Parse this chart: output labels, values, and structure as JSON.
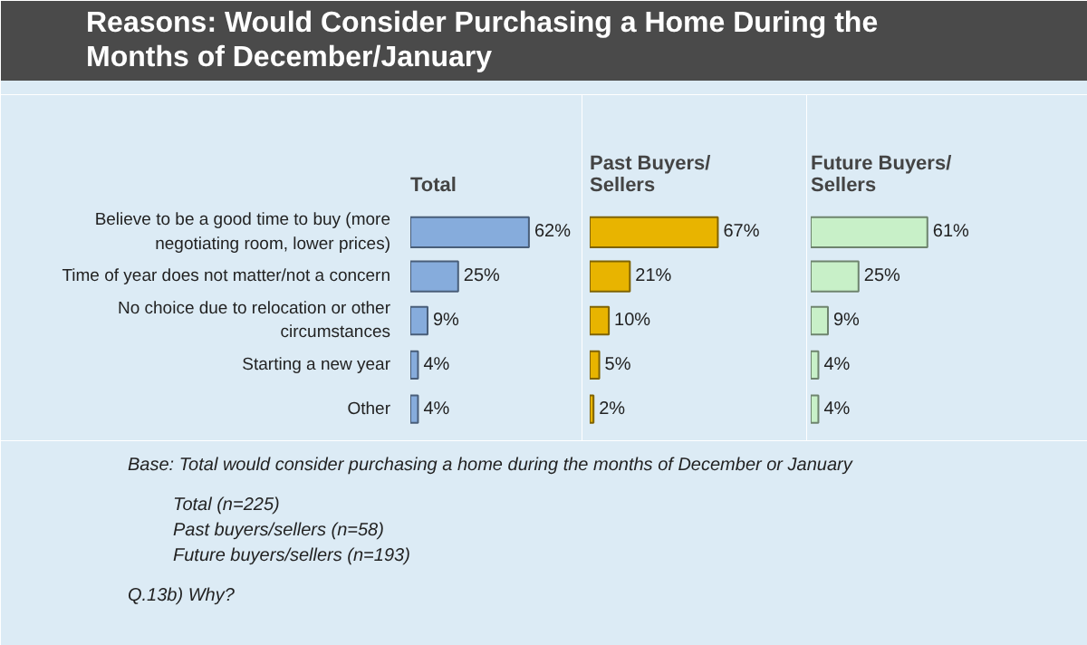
{
  "chart_data": [
    {
      "type": "other",
      "title": "Reasons: Would Consider Purchasing a Home During the Months of December/January",
      "annotations": [
        "Base: Total would consider purchasing a home during the months of December or January",
        "Total (n=225)",
        "Past buyers/sellers (n=58)",
        "Future buyers/sellers (n=193)",
        "Q.13b) Why?"
      ]
    },
    {
      "type": "bar",
      "orientation": "horizontal",
      "title": "Total",
      "categories": [
        "Believe to be a good time to buy (more negotiating room, lower prices)",
        "Time of year does not matter/not a concern",
        "No choice due to relocation or other circumstances",
        "Starting a new year",
        "Other"
      ],
      "values": [
        62,
        25,
        9,
        4,
        4
      ],
      "value_labels": [
        "62%",
        "25%",
        "9%",
        "4%",
        "4%"
      ],
      "color": "#86acdc",
      "xlim": [
        0,
        90
      ],
      "tick_labels": "y"
    },
    {
      "type": "bar",
      "orientation": "horizontal",
      "title": "Past Buyers/ Sellers",
      "categories": [
        "Believe to be a good time to buy (more negotiating room, lower prices)",
        "Time of year does not matter/not a concern",
        "No choice due to relocation or other circumstances",
        "Starting a new year",
        "Other"
      ],
      "values": [
        67,
        21,
        10,
        5,
        2
      ],
      "value_labels": [
        "67%",
        "21%",
        "10%",
        "5%",
        "2%"
      ],
      "color": "#e8b400",
      "xlim": [
        0,
        90
      ],
      "tick_labels": false
    },
    {
      "type": "bar",
      "orientation": "horizontal",
      "title": "Future Buyers/ Sellers",
      "categories": [
        "Believe to be a good time to buy (more negotiating room, lower prices)",
        "Time of year does not matter/not a concern",
        "No choice due to relocation or other circumstances",
        "Starting a new year",
        "Other"
      ],
      "values": [
        61,
        25,
        9,
        4,
        4
      ],
      "value_labels": [
        "61%",
        "25%",
        "9%",
        "4%",
        "4%"
      ],
      "color": "#c8f0c8",
      "xlim": [
        0,
        90
      ],
      "tick_labels": false
    }
  ]
}
